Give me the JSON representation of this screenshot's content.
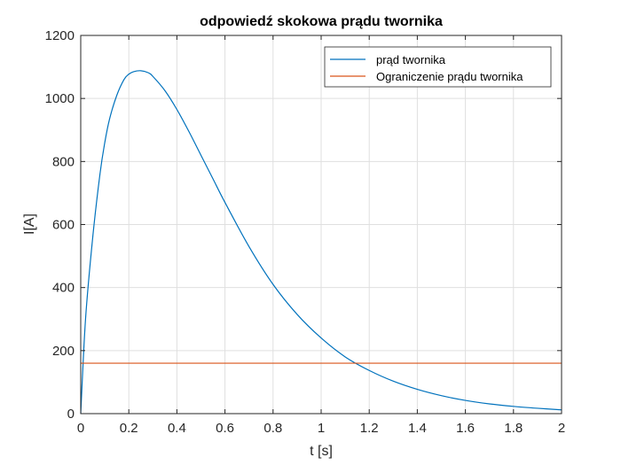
{
  "chart_data": {
    "type": "line",
    "title": "odpowiedź skokowa prądu twornika",
    "xlabel": "t [s]",
    "ylabel": "I[A]",
    "xlim": [
      0,
      2
    ],
    "ylim": [
      0,
      1200
    ],
    "xticks": [
      0,
      0.2,
      0.4,
      0.6,
      0.8,
      1,
      1.2,
      1.4,
      1.6,
      1.8,
      2
    ],
    "xtick_labels": [
      "0",
      "0.2",
      "0.4",
      "0.6",
      "0.8",
      "1",
      "1.2",
      "1.4",
      "1.6",
      "1.8",
      "2"
    ],
    "yticks": [
      0,
      200,
      400,
      600,
      800,
      1000,
      1200
    ],
    "ytick_labels": [
      "0",
      "200",
      "400",
      "600",
      "800",
      "1000",
      "1200"
    ],
    "grid": true,
    "legend_position": "top-right",
    "series": [
      {
        "name": "prąd twornika",
        "color": "#0072BD",
        "x": [
          0,
          0.02,
          0.05,
          0.08,
          0.1,
          0.12,
          0.15,
          0.18,
          0.2,
          0.22,
          0.25,
          0.28,
          0.3,
          0.35,
          0.4,
          0.45,
          0.5,
          0.55,
          0.6,
          0.7,
          0.8,
          0.9,
          1.0,
          1.1,
          1.2,
          1.3,
          1.4,
          1.5,
          1.6,
          1.7,
          1.8,
          1.9,
          2.0
        ],
        "y": [
          0,
          300,
          560,
          760,
          860,
          935,
          1010,
          1060,
          1077,
          1085,
          1088,
          1082,
          1070,
          1025,
          965,
          895,
          820,
          745,
          670,
          530,
          410,
          315,
          240,
          180,
          137,
          103,
          77,
          57,
          42,
          31,
          23,
          17,
          12
        ]
      },
      {
        "name": "Ograniczenie prądu twornika",
        "color": "#D95319",
        "x": [
          0,
          2
        ],
        "y": [
          160,
          160
        ]
      }
    ]
  }
}
